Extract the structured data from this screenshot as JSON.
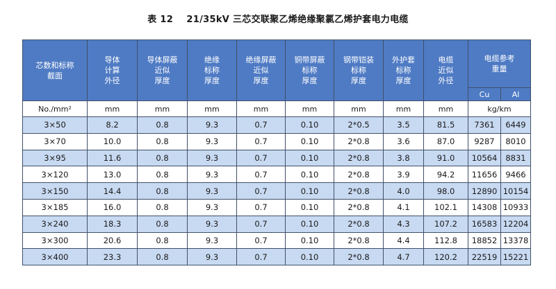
{
  "title": "表 12    21/35kV 三芯交联聚乙烯绝缘聚氯乙烯护套电力电缆",
  "headers": {
    "core": "芯数和标称\n截面",
    "conductor_od": "导体\n计算\n外径",
    "cond_shield": "导体屏蔽\n近似\n厚度",
    "insulation": "绝缘\n标称\n厚度",
    "ins_shield": "绝缘屏蔽\n近似\n厚度",
    "cu_tape": "铜带屏蔽\n标称\n厚度",
    "steel_tape": "钢带铠装\n标称\n厚度",
    "sheath": "外护套\n标称\n厚度",
    "cable_od": "电缆\n近似\n外径",
    "weight": "电缆参考\n重量",
    "cu": "Cu",
    "al": "Al"
  },
  "units": {
    "core": "No./mm²",
    "conductor_od": "mm",
    "cond_shield": "mm",
    "insulation": "mm",
    "ins_shield": "mm",
    "cu_tape": "mm",
    "steel_tape": "mm",
    "sheath": "mm",
    "cable_od": "mm",
    "weight": "kg/km"
  },
  "rows": [
    [
      "3×50",
      "8.2",
      "0.8",
      "9.3",
      "0.7",
      "0.10",
      "2*0.5",
      "3.5",
      "81.5",
      "7361",
      "6449"
    ],
    [
      "3×70",
      "10.0",
      "0.8",
      "9.3",
      "0.7",
      "0.10",
      "2*0.8",
      "3.6",
      "87.0",
      "9287",
      "8010"
    ],
    [
      "3×95",
      "11.6",
      "0.8",
      "9.3",
      "0.7",
      "0.10",
      "2*0.8",
      "3.8",
      "91.0",
      "10564",
      "8831"
    ],
    [
      "3×120",
      "13.0",
      "0.8",
      "9.3",
      "0.7",
      "0.10",
      "2*0.8",
      "3.9",
      "94.2",
      "11656",
      "9466"
    ],
    [
      "3×150",
      "14.4",
      "0.8",
      "9.3",
      "0.7",
      "0.10",
      "2*0.8",
      "4.0",
      "98.0",
      "12890",
      "10154"
    ],
    [
      "3×185",
      "16.0",
      "0.8",
      "9.3",
      "0.7",
      "0.10",
      "2*0.8",
      "4.1",
      "102.1",
      "14308",
      "10933"
    ],
    [
      "3×240",
      "18.3",
      "0.8",
      "9.3",
      "0.7",
      "0.10",
      "2*0.8",
      "4.3",
      "107.2",
      "16583",
      "12204"
    ],
    [
      "3×300",
      "20.6",
      "0.8",
      "9.3",
      "0.7",
      "0.10",
      "2*0.8",
      "4.4",
      "112.8",
      "18852",
      "13378"
    ],
    [
      "3×400",
      "23.3",
      "0.8",
      "9.3",
      "0.7",
      "0.10",
      "2*0.8",
      "4.7",
      "120.2",
      "22519",
      "15221"
    ]
  ],
  "colors": {
    "header_bg": "#4f7bc4",
    "row_alt_bg": "#c8daf2",
    "border": "#3f4f68"
  }
}
